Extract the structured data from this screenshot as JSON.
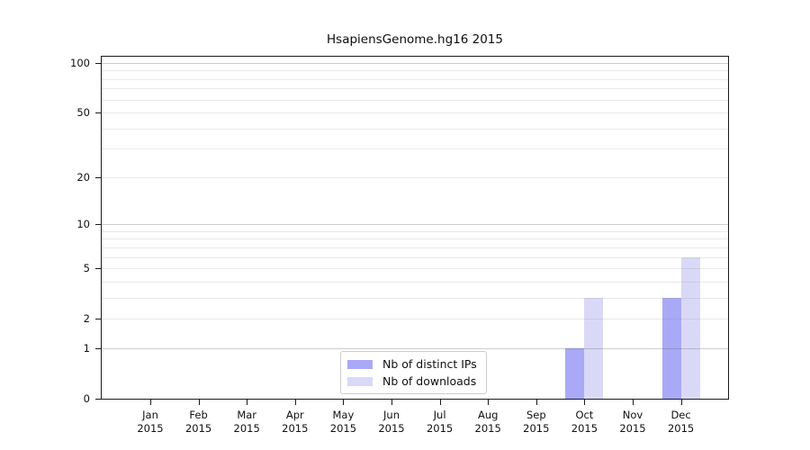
{
  "title": "HsapiensGenome.hg16 2015",
  "chart_data": {
    "type": "bar",
    "title": "HsapiensGenome.hg16 2015",
    "x_months": [
      "Jan",
      "Feb",
      "Mar",
      "Apr",
      "May",
      "Jun",
      "Jul",
      "Aug",
      "Sep",
      "Oct",
      "Nov",
      "Dec"
    ],
    "x_year": "2015",
    "categories": [
      "Jan 2015",
      "Feb 2015",
      "Mar 2015",
      "Apr 2015",
      "May 2015",
      "Jun 2015",
      "Jul 2015",
      "Aug 2015",
      "Sep 2015",
      "Oct 2015",
      "Nov 2015",
      "Dec 2015"
    ],
    "series": [
      {
        "name": "Nb of distinct IPs",
        "color": "#a9a9f8",
        "values": [
          0,
          0,
          0,
          0,
          0,
          0,
          0,
          0,
          0,
          1,
          0,
          3
        ]
      },
      {
        "name": "Nb of downloads",
        "color": "#d9d9f7",
        "values": [
          0,
          0,
          0,
          0,
          0,
          0,
          0,
          0,
          0,
          3,
          0,
          6
        ]
      }
    ],
    "y_ticks": [
      100,
      50,
      20,
      10,
      5,
      2,
      1,
      0
    ],
    "grid_major": [
      1,
      10,
      100
    ],
    "grid_minor": [
      2,
      3,
      4,
      5,
      6,
      7,
      8,
      9,
      20,
      30,
      40,
      50,
      60,
      70,
      80,
      90
    ],
    "yscale": "log1p",
    "ylim": [
      0,
      100
    ],
    "grid": true,
    "legend_position": "bottom-center",
    "colors": {
      "distinct_ips": "#a9a9f8",
      "downloads": "#d9d9f7",
      "grid_minor": "#e9e9e9",
      "grid_major": "#d1d1d1",
      "axis": "#1a1a1a",
      "text": "#111111"
    }
  }
}
